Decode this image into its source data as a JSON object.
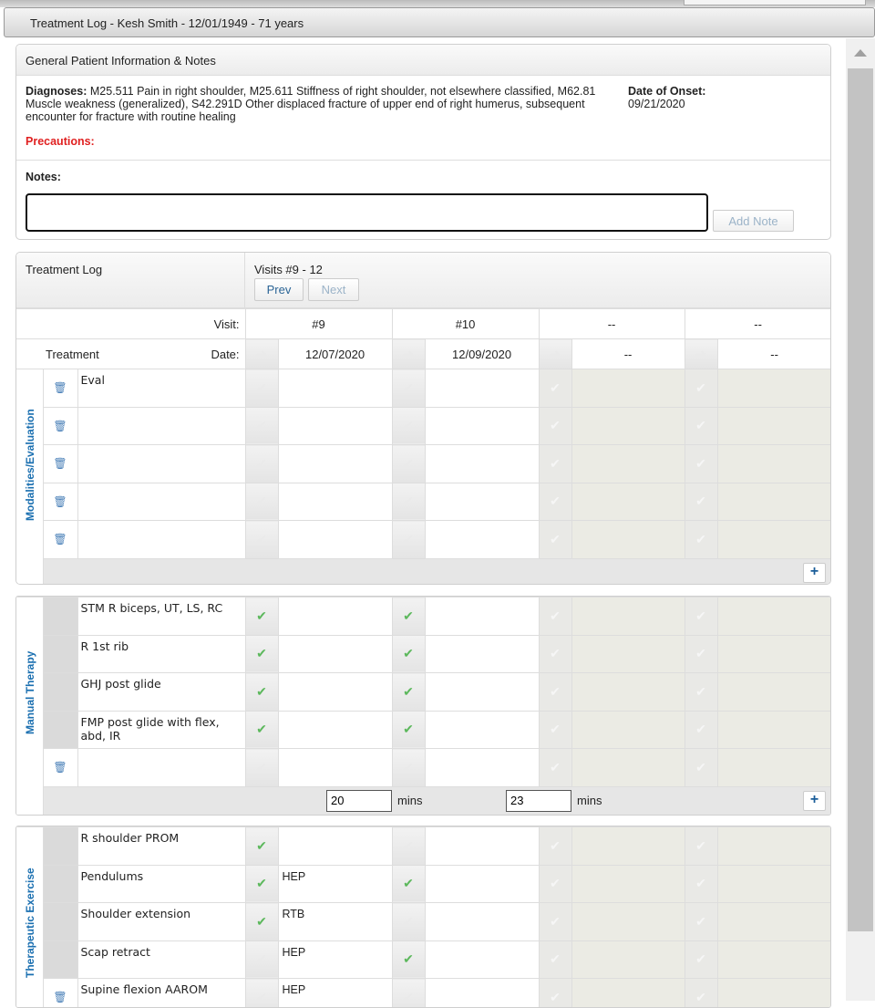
{
  "window_title": "Treatment Log - Kesh Smith - 12/01/1949 - 71 years",
  "general": {
    "title": "General Patient Information & Notes",
    "diagnoses_label": "Diagnoses:",
    "diagnoses": "M25.511 Pain in right shoulder, M25.611 Stiffness of right shoulder, not elsewhere classified, M62.81 Muscle weakness (generalized), S42.291D Other displaced fracture of upper end of right humerus, subsequent encounter for fracture with routine healing",
    "onset_label": "Date of Onset:",
    "onset": "09/21/2020",
    "precautions_label": "Precautions:",
    "notes_label": "Notes:",
    "notes_value": "",
    "add_note": "Add Note"
  },
  "log": {
    "title": "Treatment Log",
    "visits_range": "Visits #9 - 12",
    "prev": "Prev",
    "next": "Next",
    "visit_label": "Visit:",
    "date_label": "Date:",
    "treatment_label": "Treatment",
    "visits": [
      {
        "num": "#9",
        "date": "12/07/2020"
      },
      {
        "num": "#10",
        "date": "12/09/2020"
      },
      {
        "num": "--",
        "date": "--"
      },
      {
        "num": "--",
        "date": "--"
      }
    ],
    "mins_label": "mins",
    "sections": [
      {
        "name": "Modalities/Evaluation",
        "rows": [
          {
            "name": "Eval",
            "trash": true,
            "checks": [
              false,
              false
            ],
            "values": [
              "",
              ""
            ]
          },
          {
            "name": "",
            "trash": true,
            "checks": [
              false,
              false
            ],
            "values": [
              "",
              ""
            ]
          },
          {
            "name": "",
            "trash": true,
            "checks": [
              false,
              false
            ],
            "values": [
              "",
              ""
            ]
          },
          {
            "name": "",
            "trash": true,
            "checks": [
              false,
              false
            ],
            "values": [
              "",
              ""
            ]
          },
          {
            "name": "",
            "trash": true,
            "checks": [
              false,
              false
            ],
            "values": [
              "",
              ""
            ]
          }
        ],
        "mins": null
      },
      {
        "name": "Manual Therapy",
        "rows": [
          {
            "name": "STM R biceps, UT, LS, RC",
            "trash": false,
            "checks": [
              true,
              true
            ],
            "values": [
              "",
              ""
            ]
          },
          {
            "name": "R 1st rib",
            "trash": false,
            "checks": [
              true,
              true
            ],
            "values": [
              "",
              ""
            ]
          },
          {
            "name": "GHJ post glide",
            "trash": false,
            "checks": [
              true,
              true
            ],
            "values": [
              "",
              ""
            ]
          },
          {
            "name": "FMP post glide with flex, abd, IR",
            "trash": false,
            "checks": [
              true,
              true
            ],
            "values": [
              "",
              ""
            ]
          },
          {
            "name": "",
            "trash": true,
            "checks": [
              false,
              false
            ],
            "values": [
              "",
              ""
            ]
          }
        ],
        "mins": [
          "20",
          "23"
        ]
      },
      {
        "name": "Therapeutic Exercise",
        "rows": [
          {
            "name": "R shoulder PROM",
            "trash": false,
            "checks": [
              true,
              false
            ],
            "values": [
              "",
              ""
            ]
          },
          {
            "name": "Pendulums",
            "trash": false,
            "checks": [
              true,
              true
            ],
            "values": [
              "HEP",
              ""
            ]
          },
          {
            "name": "Shoulder extension",
            "trash": false,
            "checks": [
              true,
              false
            ],
            "values": [
              "RTB",
              ""
            ]
          },
          {
            "name": "Scap retract",
            "trash": false,
            "checks": [
              false,
              true
            ],
            "values": [
              "HEP",
              ""
            ]
          },
          {
            "name": "Supine flexion AAROM",
            "trash": true,
            "checks": [
              false,
              false
            ],
            "values": [
              "HEP",
              ""
            ]
          }
        ],
        "mins": null
      }
    ]
  },
  "colors": {
    "accent": "#1a6fb0",
    "check": "#5cb85c",
    "precautions": "#e02020"
  }
}
